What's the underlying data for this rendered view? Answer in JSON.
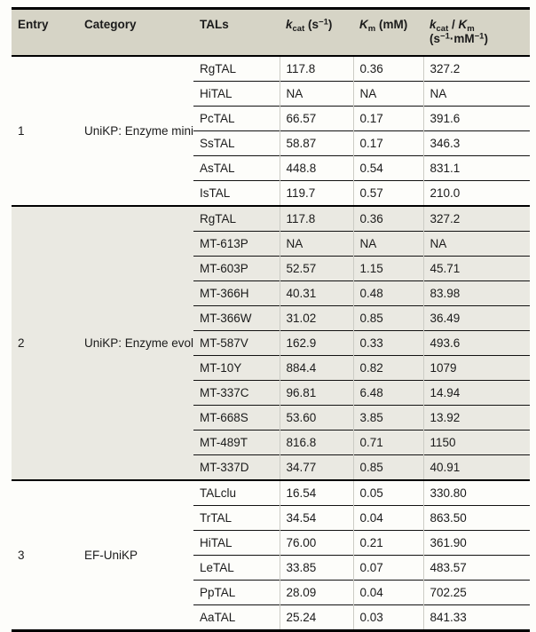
{
  "colors": {
    "page_background": "#fdfdfa",
    "header_background": "#d6d4c6",
    "shaded_section_background": "#eae9e2",
    "rule_color": "#000000",
    "hairline_color": "#ccccc5",
    "text_color": "#1b1b1b"
  },
  "table": {
    "columns": [
      {
        "id": "entry",
        "label_parts": [
          {
            "t": "Entry"
          }
        ]
      },
      {
        "id": "category",
        "label_parts": [
          {
            "t": "Category"
          }
        ]
      },
      {
        "id": "tals",
        "label_parts": [
          {
            "t": "TALs"
          }
        ]
      },
      {
        "id": "kcat",
        "label_parts": [
          {
            "t": "k",
            "it": true
          },
          {
            "t": "cat",
            "sub": true
          },
          {
            "t": " (s"
          },
          {
            "t": "−1",
            "sup": true
          },
          {
            "t": ")"
          }
        ]
      },
      {
        "id": "km",
        "label_parts": [
          {
            "t": "K",
            "it": true
          },
          {
            "t": "m",
            "sub": true
          },
          {
            "t": " (mM)"
          }
        ]
      },
      {
        "id": "kcat_over_km",
        "label_parts": [
          {
            "t": "k",
            "it": true
          },
          {
            "t": "cat",
            "sub": true
          },
          {
            "t": " / "
          },
          {
            "t": "K",
            "it": true
          },
          {
            "t": "m",
            "sub": true
          },
          {
            "br": true
          },
          {
            "t": "(s"
          },
          {
            "t": "−1",
            "sup": true
          },
          {
            "t": "·mM"
          },
          {
            "t": "−1",
            "sup": true
          },
          {
            "t": ")"
          }
        ]
      }
    ],
    "sections": [
      {
        "entry": "1",
        "category": "UniKP: Enzyme mining",
        "shaded": false,
        "rows": [
          {
            "tal": "RgTAL",
            "kcat": "117.8",
            "km": "0.36",
            "kcat_over_km": "327.2"
          },
          {
            "tal": "HiTAL",
            "kcat": "NA",
            "km": "NA",
            "kcat_over_km": "NA"
          },
          {
            "tal": "PcTAL",
            "kcat": "66.57",
            "km": "0.17",
            "kcat_over_km": "391.6"
          },
          {
            "tal": "SsTAL",
            "kcat": "58.87",
            "km": "0.17",
            "kcat_over_km": "346.3"
          },
          {
            "tal": "AsTAL",
            "kcat": "448.8",
            "km": "0.54",
            "kcat_over_km": "831.1"
          },
          {
            "tal": "IsTAL",
            "kcat": "119.7",
            "km": "0.57",
            "kcat_over_km": "210.0"
          }
        ]
      },
      {
        "entry": "2",
        "category": "UniKP: Enzyme evolution",
        "shaded": true,
        "rows": [
          {
            "tal": "RgTAL",
            "kcat": "117.8",
            "km": "0.36",
            "kcat_over_km": "327.2"
          },
          {
            "tal": "MT-613P",
            "kcat": "NA",
            "km": "NA",
            "kcat_over_km": "NA"
          },
          {
            "tal": "MT-603P",
            "kcat": "52.57",
            "km": "1.15",
            "kcat_over_km": "45.71"
          },
          {
            "tal": "MT-366H",
            "kcat": "40.31",
            "km": "0.48",
            "kcat_over_km": "83.98"
          },
          {
            "tal": "MT-366W",
            "kcat": "31.02",
            "km": "0.85",
            "kcat_over_km": "36.49"
          },
          {
            "tal": "MT-587V",
            "kcat": "162.9",
            "km": "0.33",
            "kcat_over_km": "493.6"
          },
          {
            "tal": "MT-10Y",
            "kcat": "884.4",
            "km": "0.82",
            "kcat_over_km": "1079"
          },
          {
            "tal": "MT-337C",
            "kcat": "96.81",
            "km": "6.48",
            "kcat_over_km": "14.94"
          },
          {
            "tal": "MT-668S",
            "kcat": "53.60",
            "km": "3.85",
            "kcat_over_km": "13.92"
          },
          {
            "tal": "MT-489T",
            "kcat": "816.8",
            "km": "0.71",
            "kcat_over_km": "1150"
          },
          {
            "tal": "MT-337D",
            "kcat": "34.77",
            "km": "0.85",
            "kcat_over_km": "40.91"
          }
        ]
      },
      {
        "entry": "3",
        "category": "EF-UniKP",
        "shaded": false,
        "rows": [
          {
            "tal": "TALclu",
            "kcat": "16.54",
            "km": "0.05",
            "kcat_over_km": "330.80"
          },
          {
            "tal": "TrTAL",
            "kcat": "34.54",
            "km": "0.04",
            "kcat_over_km": "863.50"
          },
          {
            "tal": "HiTAL",
            "kcat": "76.00",
            "km": "0.21",
            "kcat_over_km": "361.90"
          },
          {
            "tal": "LeTAL",
            "kcat": "33.85",
            "km": "0.07",
            "kcat_over_km": "483.57"
          },
          {
            "tal": "PpTAL",
            "kcat": "28.09",
            "km": "0.04",
            "kcat_over_km": "702.25"
          },
          {
            "tal": "AaTAL",
            "kcat": "25.24",
            "km": "0.03",
            "kcat_over_km": "841.33"
          }
        ]
      }
    ]
  }
}
